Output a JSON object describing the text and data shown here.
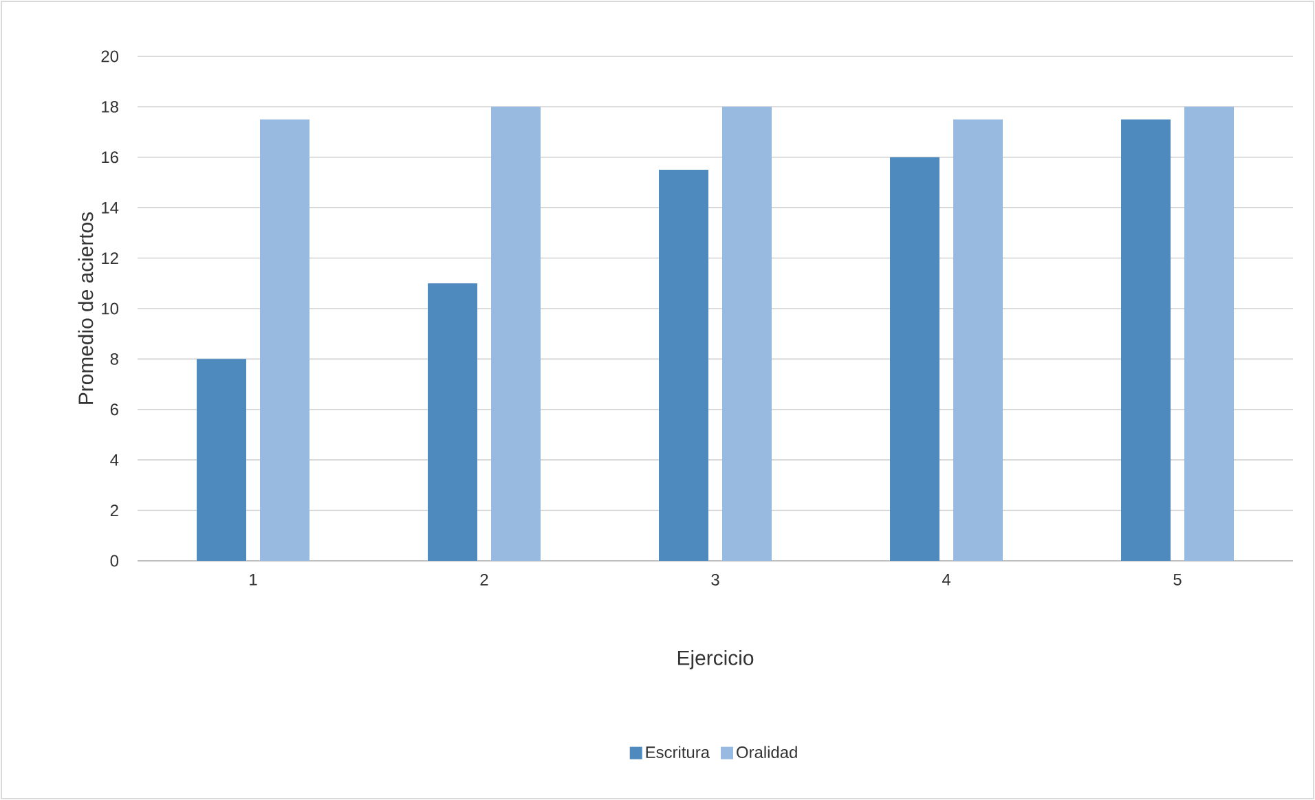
{
  "chart_data": {
    "type": "bar",
    "xlabel": "Ejercicio",
    "ylabel": "Promedio de  aciertos",
    "categories": [
      "1",
      "2",
      "3",
      "4",
      "5"
    ],
    "series": [
      {
        "name": "Escritura",
        "color": "#4f8abe",
        "values": [
          8,
          11,
          15.5,
          16,
          17.5
        ]
      },
      {
        "name": "Oralidad",
        "color": "#98b9e0",
        "values": [
          17.5,
          18,
          18,
          17.5,
          18
        ]
      }
    ],
    "ylim": [
      0,
      20
    ],
    "yticks": [
      0,
      2,
      4,
      6,
      8,
      10,
      12,
      14,
      16,
      18,
      20
    ],
    "grid": "y",
    "legend": "bottom"
  }
}
